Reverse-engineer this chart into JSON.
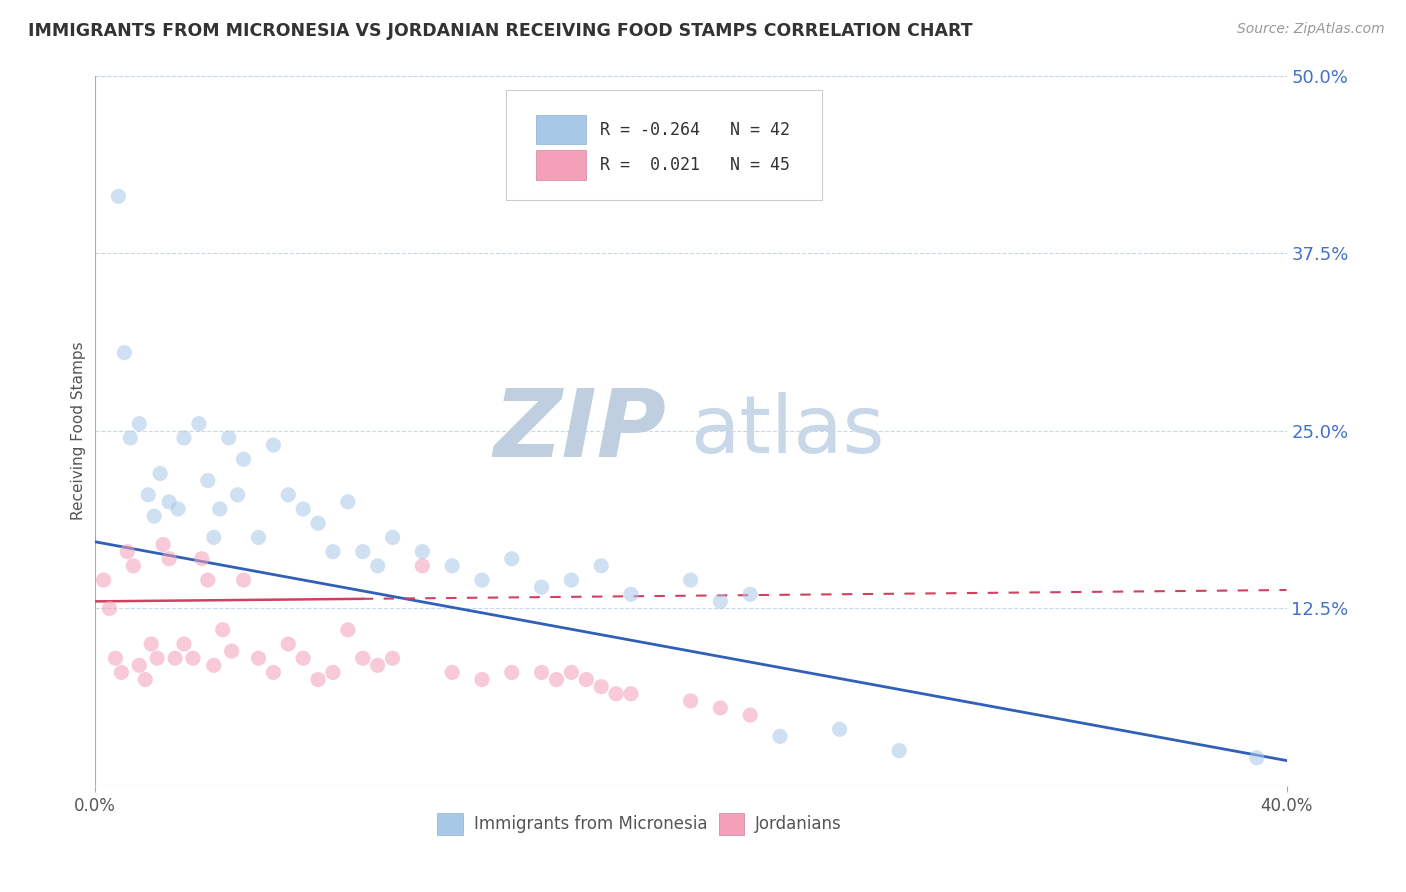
{
  "title": "IMMIGRANTS FROM MICRONESIA VS JORDANIAN RECEIVING FOOD STAMPS CORRELATION CHART",
  "source": "Source: ZipAtlas.com",
  "xlabel_micronesia": "Immigrants from Micronesia",
  "xlabel_jordanian": "Jordanians",
  "ylabel": "Receiving Food Stamps",
  "xlim": [
    0.0,
    0.4
  ],
  "ylim": [
    0.0,
    0.5
  ],
  "xtick_labels": [
    "0.0%",
    "40.0%"
  ],
  "xtick_vals": [
    0.0,
    0.4
  ],
  "ytick_right": [
    0.125,
    0.25,
    0.375,
    0.5
  ],
  "ytick_right_labels": [
    "12.5%",
    "25.0%",
    "37.5%",
    "50.0%"
  ],
  "legend_R1": "-0.264",
  "legend_N1": "42",
  "legend_R2": "0.021",
  "legend_N2": "45",
  "color_micronesia": "#a8c8e8",
  "color_jordanian": "#f4a0b8",
  "color_line_micronesia": "#3060b8",
  "color_line_jordanian": "#d04060",
  "color_title": "#333333",
  "color_axis_label": "#555555",
  "color_tick_right": "#4472c4",
  "watermark_zip": "ZIP",
  "watermark_atlas": "atlas",
  "watermark_color_zip": "#c0cfe0",
  "watermark_color_atlas": "#c8d8e8",
  "bg_color": "#ffffff",
  "grid_color": "#c8d8e8",
  "dot_size": 120,
  "dot_alpha": 0.55,
  "mic_line_y0": 0.172,
  "mic_line_y1": 0.018,
  "jor_line_y0": 0.13,
  "jor_line_y1": 0.138,
  "micronesia_x": [
    0.008,
    0.01,
    0.012,
    0.015,
    0.018,
    0.02,
    0.022,
    0.025,
    0.028,
    0.03,
    0.035,
    0.038,
    0.04,
    0.042,
    0.045,
    0.048,
    0.05,
    0.055,
    0.06,
    0.065,
    0.07,
    0.075,
    0.08,
    0.085,
    0.09,
    0.095,
    0.1,
    0.11,
    0.12,
    0.13,
    0.14,
    0.15,
    0.16,
    0.17,
    0.18,
    0.2,
    0.21,
    0.22,
    0.23,
    0.25,
    0.27,
    0.39
  ],
  "micronesia_y": [
    0.415,
    0.305,
    0.245,
    0.255,
    0.205,
    0.19,
    0.22,
    0.2,
    0.195,
    0.245,
    0.255,
    0.215,
    0.175,
    0.195,
    0.245,
    0.205,
    0.23,
    0.175,
    0.24,
    0.205,
    0.195,
    0.185,
    0.165,
    0.2,
    0.165,
    0.155,
    0.175,
    0.165,
    0.155,
    0.145,
    0.16,
    0.14,
    0.145,
    0.155,
    0.135,
    0.145,
    0.13,
    0.135,
    0.035,
    0.04,
    0.025,
    0.02
  ],
  "jordanian_x": [
    0.003,
    0.005,
    0.007,
    0.009,
    0.011,
    0.013,
    0.015,
    0.017,
    0.019,
    0.021,
    0.023,
    0.025,
    0.027,
    0.03,
    0.033,
    0.036,
    0.038,
    0.04,
    0.043,
    0.046,
    0.05,
    0.055,
    0.06,
    0.065,
    0.07,
    0.075,
    0.08,
    0.085,
    0.09,
    0.095,
    0.1,
    0.11,
    0.12,
    0.13,
    0.14,
    0.15,
    0.155,
    0.16,
    0.165,
    0.17,
    0.175,
    0.18,
    0.2,
    0.21,
    0.22
  ],
  "jordanian_y": [
    0.145,
    0.125,
    0.09,
    0.08,
    0.165,
    0.155,
    0.085,
    0.075,
    0.1,
    0.09,
    0.17,
    0.16,
    0.09,
    0.1,
    0.09,
    0.16,
    0.145,
    0.085,
    0.11,
    0.095,
    0.145,
    0.09,
    0.08,
    0.1,
    0.09,
    0.075,
    0.08,
    0.11,
    0.09,
    0.085,
    0.09,
    0.155,
    0.08,
    0.075,
    0.08,
    0.08,
    0.075,
    0.08,
    0.075,
    0.07,
    0.065,
    0.065,
    0.06,
    0.055,
    0.05
  ]
}
